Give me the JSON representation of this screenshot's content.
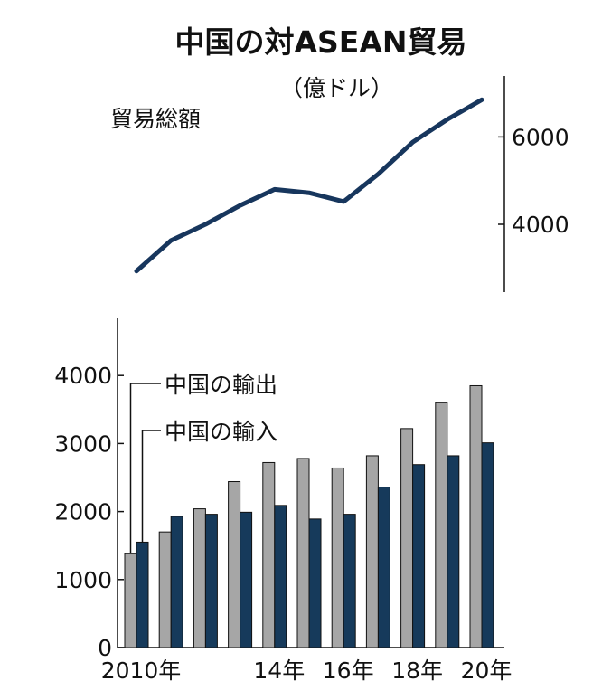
{
  "title": "中国の対ASEAN貿易",
  "unit": "（億ドル）",
  "colors": {
    "line": "#17365d",
    "export": "#a6a6a6",
    "import": "#163a5b",
    "axis": "#111111"
  },
  "chart_data": [
    {
      "type": "line",
      "label": "貿易総額",
      "x": [
        2010,
        2011,
        2012,
        2013,
        2014,
        2015,
        2016,
        2017,
        2018,
        2019,
        2020
      ],
      "values": [
        2930,
        3630,
        4000,
        4430,
        4800,
        4720,
        4520,
        5150,
        5880,
        6400,
        6850
      ],
      "yticks": [
        "4000",
        "6000"
      ],
      "y_axis_side": "right"
    },
    {
      "type": "bar",
      "categories": [
        "2010年",
        "2011",
        "2012",
        "2013",
        "14年",
        "2015",
        "16年",
        "2017",
        "18年",
        "2019",
        "20年"
      ],
      "xtick_labels": [
        "2010年",
        "",
        "",
        "",
        "14年",
        "",
        "16年",
        "",
        "18年",
        "",
        "20年"
      ],
      "ylim": [
        0,
        4800
      ],
      "yticks": [
        "0",
        "1000",
        "2000",
        "3000",
        "4000"
      ],
      "series": [
        {
          "name": "中国の輸出",
          "values": [
            1380,
            1700,
            2040,
            2440,
            2720,
            2780,
            2640,
            2820,
            3220,
            3600,
            3850
          ]
        },
        {
          "name": "中国の輸入",
          "values": [
            1550,
            1930,
            1960,
            1990,
            2090,
            1890,
            1960,
            2360,
            2690,
            2820,
            3010
          ]
        }
      ]
    }
  ]
}
